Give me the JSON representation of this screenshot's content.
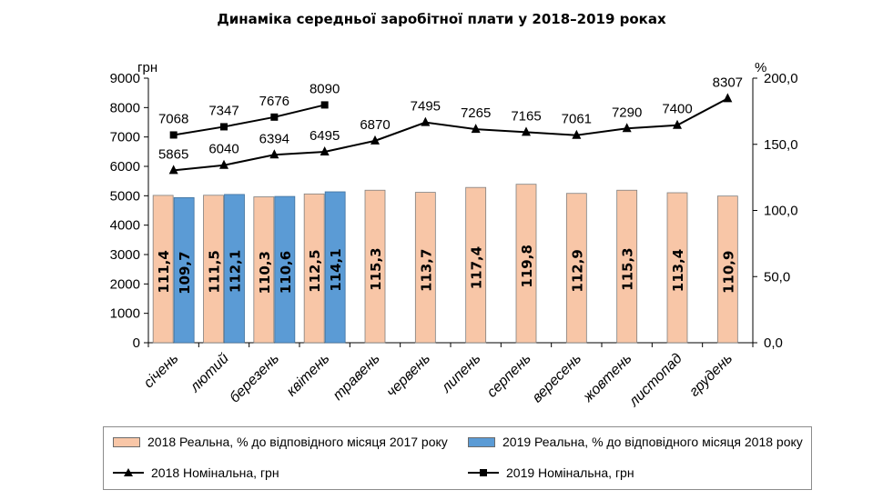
{
  "chart_data": {
    "type": "bar",
    "title": "Динаміка середньої заробітної плати у 2018–2019 роках",
    "left_axis_unit": "грн",
    "right_axis_unit": "%",
    "left_ylim": [
      0,
      9000
    ],
    "left_ticks": [
      "0",
      "1000",
      "2000",
      "3000",
      "4000",
      "5000",
      "6000",
      "7000",
      "8000",
      "9000"
    ],
    "right_ylim": [
      0,
      200
    ],
    "right_ticks": [
      "0,0",
      "50,0",
      "100,0",
      "150,0",
      "200,0"
    ],
    "categories": [
      "січень",
      "лютий",
      "березень",
      "квітень",
      "травень",
      "червень",
      "липень",
      "серпень",
      "вересень",
      "жовтень",
      "листопад",
      "грудень"
    ],
    "bar_series": [
      {
        "name": "2018 Реальна, % до відповідного місяця 2017 року",
        "color": "#f8c6a7",
        "values": [
          111.4,
          111.5,
          110.3,
          112.5,
          115.3,
          113.7,
          117.4,
          119.8,
          112.9,
          115.3,
          113.4,
          110.9
        ],
        "labels": [
          "111,4",
          "111,5",
          "110,3",
          "112,5",
          "115,3",
          "113,7",
          "117,4",
          "119,8",
          "112,9",
          "115,3",
          "113,4",
          "110,9"
        ]
      },
      {
        "name": "2019 Реальна, % до відповідного місяця 2018 року",
        "color": "#5b9bd5",
        "values": [
          109.7,
          112.1,
          110.6,
          114.1
        ],
        "labels": [
          "109,7",
          "112,1",
          "110,6",
          "114,1"
        ]
      }
    ],
    "line_series": [
      {
        "name": "2018 Номінальна, грн",
        "marker": "triangle",
        "values": [
          5865,
          6040,
          6394,
          6495,
          6870,
          7495,
          7265,
          7165,
          7061,
          7290,
          7400,
          8307
        ],
        "labels": [
          "5865",
          "6040",
          "6394",
          "6495",
          "6870",
          "7495",
          "7265",
          "7165",
          "7061",
          "7290",
          "7400",
          "8307"
        ]
      },
      {
        "name": "2019 Номінальна, грн",
        "marker": "square",
        "values": [
          7068,
          7347,
          7676,
          8090
        ],
        "labels": [
          "7068",
          "7347",
          "7676",
          "8090"
        ]
      }
    ],
    "grid": false,
    "legend_position": "bottom"
  }
}
